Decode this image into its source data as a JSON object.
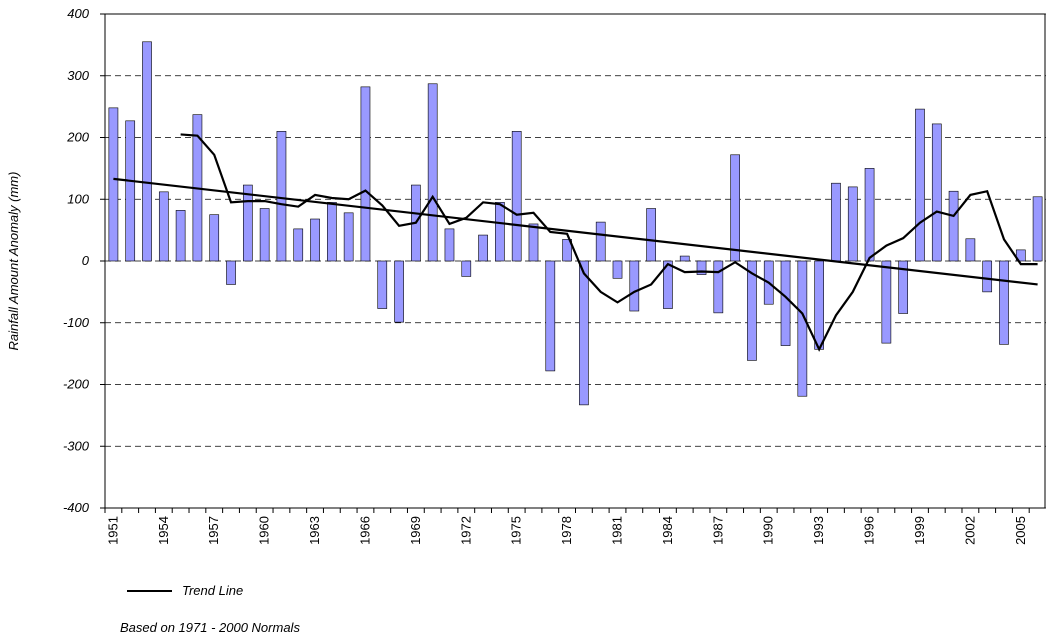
{
  "chart_data": {
    "type": "bar",
    "y_label": "Rainfall Amount Anomaly  (mm)",
    "footnote": "Based on 1971 - 2000 Normals",
    "categories": [
      "1951",
      null,
      null,
      "1954",
      null,
      null,
      "1957",
      null,
      null,
      "1960",
      null,
      null,
      "1963",
      null,
      null,
      "1966",
      null,
      null,
      "1969",
      null,
      null,
      "1972",
      null,
      null,
      "1975",
      null,
      null,
      "1978",
      null,
      null,
      "1981",
      null,
      null,
      "1984",
      null,
      null,
      "1987",
      null,
      null,
      "1990",
      null,
      null,
      "1993",
      null,
      null,
      "1996",
      null,
      null,
      "1999",
      null,
      null,
      "2002",
      null,
      null,
      "2005",
      null
    ],
    "values": [
      248,
      227,
      355,
      112,
      82,
      237,
      75,
      -38,
      123,
      85,
      210,
      52,
      68,
      95,
      78,
      282,
      -77,
      -99,
      123,
      287,
      52,
      -25,
      42,
      95,
      210,
      60,
      -178,
      35,
      -233,
      63,
      -28,
      -81,
      85,
      -77,
      8,
      -22,
      -84,
      172,
      -161,
      -70,
      -137,
      -219,
      -143,
      126,
      120,
      150,
      -133,
      -85,
      246,
      222,
      113,
      36,
      -50,
      -135,
      18,
      104
    ],
    "color": "#9999ff",
    "moving_average": {
      "color": "#000000",
      "values": [
        null,
        null,
        null,
        null,
        205,
        203,
        172,
        95,
        97,
        97,
        92,
        88,
        107,
        102,
        100,
        114,
        90,
        57,
        62,
        104,
        60,
        70,
        95,
        92,
        75,
        78,
        47,
        44,
        -20,
        -50,
        -67,
        -50,
        -38,
        -5,
        -18,
        -17,
        -18,
        -2,
        -20,
        -35,
        -58,
        -85,
        -143,
        -88,
        -50,
        5,
        25,
        37,
        62,
        80,
        73,
        107,
        113,
        35,
        -5,
        -5
      ]
    },
    "trend": {
      "name": "Trend Line",
      "color": "#000000",
      "values": [
        133,
        -38
      ]
    },
    "ylim": [
      -400,
      400
    ],
    "yticks": [
      -400,
      -300,
      -200,
      -100,
      0,
      100,
      200,
      300,
      400
    ],
    "grid": true
  }
}
